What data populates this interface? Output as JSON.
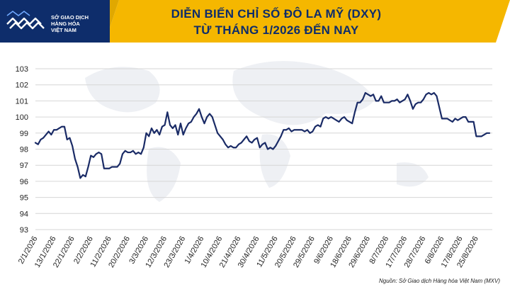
{
  "header": {
    "logo_lines": [
      "SỞ GIAO DỊCH",
      "HÀNG HÓA",
      "VIỆT NAM"
    ],
    "title_line1": "DIỄN BIẾN CHỈ SỐ ĐÔ LA MỸ (DXY)",
    "title_line2": "TỪ THÁNG 1/2026 ĐẾN NAY"
  },
  "source": "Nguồn: Sở Giao dịch Hàng hóa Việt Nam (MXV)",
  "colors": {
    "brand_navy": "#0e2d6b",
    "banner_gold": "#f5b700",
    "line": "#1a2b66",
    "grid": "#d6d6d6"
  },
  "chart_data": {
    "type": "line",
    "title": "DIỄN BIẾN CHỈ SỐ ĐÔ LA MỸ (DXY) TỪ THÁNG 1/2026 ĐẾN NAY",
    "xlabel": "",
    "ylabel": "",
    "ylim": [
      93,
      103
    ],
    "yticks": [
      93,
      94,
      95,
      96,
      97,
      98,
      99,
      100,
      101,
      102,
      103
    ],
    "grid": true,
    "legend": "none",
    "x_tick_labels": [
      "2/1/2026",
      "13/1/2026",
      "22/1/2026",
      "2/2/2026",
      "11/2/2026",
      "20/2/2026",
      "3/3/2026",
      "12/3/2026",
      "23/3/2026",
      "1/4/2026",
      "10/4/2026",
      "21/4/2026",
      "30/4/2026",
      "11/5/2026",
      "20/5/2026",
      "29/5/2026",
      "9/6/2026",
      "18/6/2026",
      "29/6/2026",
      "8/7/2026",
      "17/7/2026",
      "28/7/2026",
      "6/8/2026",
      "17/8/2026",
      "25/8/2026"
    ],
    "x_tick_index": [
      0,
      7,
      14,
      21,
      28,
      35,
      42,
      49,
      56,
      63,
      70,
      77,
      84,
      91,
      98,
      105,
      112,
      119,
      126,
      133,
      140,
      147,
      154,
      161,
      167
    ],
    "series": [
      {
        "values": [
          98.4,
          98.3,
          98.6,
          98.7,
          98.9,
          99.1,
          98.9,
          99.2,
          99.2,
          99.3,
          99.4,
          99.4,
          98.6,
          98.7,
          98.2,
          97.4,
          96.9,
          96.2,
          96.4,
          96.3,
          96.9,
          97.6,
          97.5,
          97.7,
          97.8,
          97.7,
          96.8,
          96.8,
          96.8,
          96.9,
          96.9,
          96.9,
          97.1,
          97.7,
          97.9,
          97.8,
          97.8,
          97.9,
          97.7,
          97.8,
          97.7,
          98.1,
          99.0,
          98.8,
          99.3,
          99.0,
          99.2,
          98.9,
          99.4,
          99.5,
          100.3,
          99.5,
          99.3,
          99.5,
          98.9,
          99.6,
          98.9,
          99.3,
          99.6,
          99.7,
          100.0,
          100.2,
          100.5,
          100.0,
          99.6,
          100.0,
          100.2,
          100.0,
          99.5,
          99.0,
          98.8,
          98.6,
          98.3,
          98.1,
          98.2,
          98.1,
          98.1,
          98.3,
          98.4,
          98.6,
          98.8,
          98.5,
          98.4,
          98.6,
          98.7,
          98.1,
          98.3,
          98.4,
          98.0,
          98.1,
          98.0,
          98.2,
          98.5,
          98.8,
          99.2,
          99.2,
          99.3,
          99.1,
          99.2,
          99.2,
          99.2,
          99.2,
          99.1,
          99.2,
          99.0,
          99.1,
          99.4,
          99.5,
          99.4,
          99.9,
          100.0,
          99.9,
          100.0,
          99.9,
          99.8,
          99.7,
          99.9,
          100.0,
          99.8,
          99.7,
          99.6,
          100.3,
          100.9,
          100.9,
          101.1,
          101.5,
          101.4,
          101.3,
          101.4,
          101.0,
          101.0,
          101.3,
          100.9,
          100.9,
          100.9,
          101.0,
          101.0,
          101.1,
          100.9,
          101.0,
          101.1,
          101.4,
          101.0,
          100.5,
          100.8,
          100.9,
          100.9,
          101.1,
          101.4,
          101.5,
          101.4,
          101.5,
          101.3,
          100.6,
          99.9,
          99.9,
          99.9,
          99.8,
          99.7,
          99.9,
          99.8,
          99.9,
          100.0,
          100.0,
          99.7,
          99.7,
          99.7,
          98.8,
          98.8,
          98.8,
          98.9,
          99.0,
          99.0
        ]
      }
    ]
  }
}
